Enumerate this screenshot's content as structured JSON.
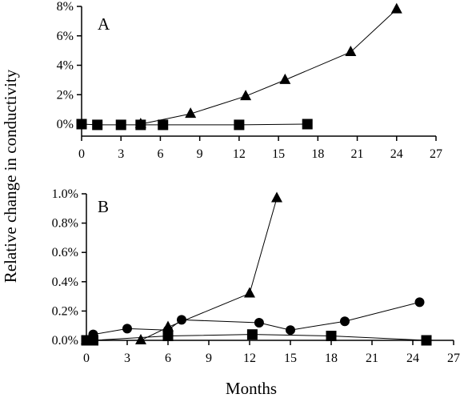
{
  "ylabel": "Relative change in conductivity",
  "xlabel": "Months",
  "chart_data": [
    {
      "type": "line",
      "panel_label": "A",
      "x_ticks": [
        "0",
        "3",
        "6",
        "9",
        "12",
        "15",
        "18",
        "21",
        "24",
        "27"
      ],
      "y_ticks": [
        "0%",
        "2%",
        "4%",
        "6%",
        "8%"
      ],
      "xlim": [
        0,
        27
      ],
      "ylim": [
        -0.6,
        8
      ],
      "y_tick_values": [
        0,
        2,
        4,
        6,
        8
      ],
      "series": [
        {
          "marker": "triangle",
          "x": [
            4.5,
            8.3,
            12.5,
            15.5,
            20.5,
            24
          ],
          "y": [
            0,
            0.7,
            1.9,
            3.0,
            4.9,
            7.8
          ]
        },
        {
          "marker": "square",
          "x": [
            0,
            1.2,
            3,
            4.5,
            6.2,
            12,
            17.2
          ],
          "y": [
            0,
            -0.05,
            -0.05,
            -0.05,
            -0.05,
            -0.05,
            0
          ]
        }
      ]
    },
    {
      "type": "line",
      "panel_label": "B",
      "x_ticks": [
        "0",
        "3",
        "6",
        "9",
        "12",
        "15",
        "18",
        "21",
        "24",
        "27"
      ],
      "y_ticks": [
        "0.0%",
        "0.2%",
        "0.4%",
        "0.6%",
        "0.8%",
        "1.0%"
      ],
      "xlim": [
        0,
        27
      ],
      "ylim": [
        0,
        1.0
      ],
      "y_tick_values": [
        0,
        0.2,
        0.4,
        0.6,
        0.8,
        1.0
      ],
      "series": [
        {
          "marker": "triangle",
          "x": [
            0,
            4,
            6,
            12,
            14
          ],
          "y": [
            0,
            0,
            0.09,
            0.32,
            0.97
          ]
        },
        {
          "marker": "circle",
          "x": [
            0.5,
            3,
            6,
            7,
            12.7,
            15,
            19,
            24.5
          ],
          "y": [
            0.04,
            0.08,
            0.07,
            0.14,
            0.12,
            0.07,
            0.13,
            0.26
          ]
        },
        {
          "marker": "square",
          "x": [
            0,
            0.5,
            6,
            12.2,
            18,
            25
          ],
          "y": [
            0,
            0,
            0.03,
            0.04,
            0.03,
            0
          ]
        }
      ]
    }
  ]
}
